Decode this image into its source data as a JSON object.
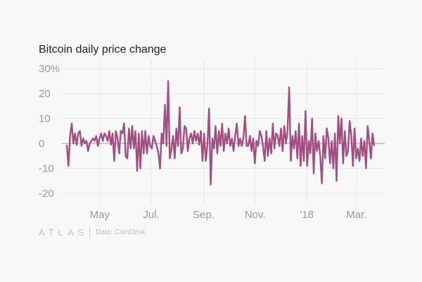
{
  "chart_data": {
    "type": "line",
    "title": "Bitcoin daily price change",
    "xlabel": "",
    "ylabel": "",
    "x_start": "2017-03-23",
    "x_end": "2018-03-22",
    "ylim": [
      -23,
      32
    ],
    "yticks": [
      30,
      20,
      10,
      0,
      -10,
      -20
    ],
    "ytick_labels": [
      "30%",
      "20",
      "10",
      "0",
      "-10",
      "-20"
    ],
    "xticks": [
      {
        "date": "2017-05-01",
        "label": "May"
      },
      {
        "date": "2017-07-01",
        "label": "Jul."
      },
      {
        "date": "2017-09-01",
        "label": "Sep."
      },
      {
        "date": "2017-11-01",
        "label": "Nov."
      },
      {
        "date": "2018-01-01",
        "label": "’18"
      },
      {
        "date": "2018-03-01",
        "label": "Mar."
      }
    ],
    "grid": true,
    "series": [
      {
        "name": "Daily price change (%)",
        "color": "#a24e80",
        "values": [
          -0.5,
          -9,
          3,
          8,
          0,
          4,
          -0.5,
          4,
          5,
          -1,
          2,
          0,
          1,
          -3,
          0,
          1,
          2,
          1,
          3,
          -1,
          2,
          4,
          1,
          4,
          3,
          1,
          5,
          -0.5,
          4,
          -7,
          5,
          2,
          -4,
          5,
          4,
          8,
          -5,
          -6,
          6,
          -2,
          7,
          -2,
          5,
          -11,
          4,
          -10,
          5,
          -4,
          5,
          -4,
          3,
          -1,
          -2,
          3,
          1,
          -1,
          -4,
          -10,
          4,
          0,
          15.5,
          -1,
          25,
          -6,
          -2,
          3,
          -6,
          6,
          -1,
          14.5,
          -4,
          -2,
          7,
          6,
          -3,
          2,
          4,
          0,
          5,
          1,
          4,
          -0.5,
          5,
          -7,
          4,
          -7,
          -0.5,
          14,
          -16.5,
          2,
          -2,
          7,
          -4,
          5,
          -1,
          8,
          -3,
          4,
          0,
          6,
          -1,
          2,
          -3,
          3,
          8,
          -1,
          2,
          -1,
          2,
          11,
          -1,
          -1,
          3,
          -3,
          2,
          -8,
          1,
          -1,
          5,
          3,
          -1,
          -7,
          5,
          -5,
          2,
          -4,
          8,
          -2,
          4,
          3,
          -1,
          6,
          -3,
          7,
          0,
          5,
          22.5,
          -7,
          3,
          -2,
          5,
          -6,
          8,
          -9,
          3,
          -7,
          13,
          -9,
          1,
          -4,
          10,
          -12,
          4,
          -3,
          1,
          -5,
          -16,
          3,
          -6,
          6,
          2,
          -8,
          1,
          -10,
          4,
          -15,
          11,
          0,
          10,
          -8,
          5,
          -5,
          -3,
          9,
          3,
          -9,
          6,
          -6,
          -2,
          -7,
          2,
          -5,
          1,
          -10,
          7,
          1,
          -6,
          4,
          -1
        ]
      }
    ]
  },
  "footer": {
    "logo": "ATLAS",
    "source": "Data: CoinDesk"
  }
}
